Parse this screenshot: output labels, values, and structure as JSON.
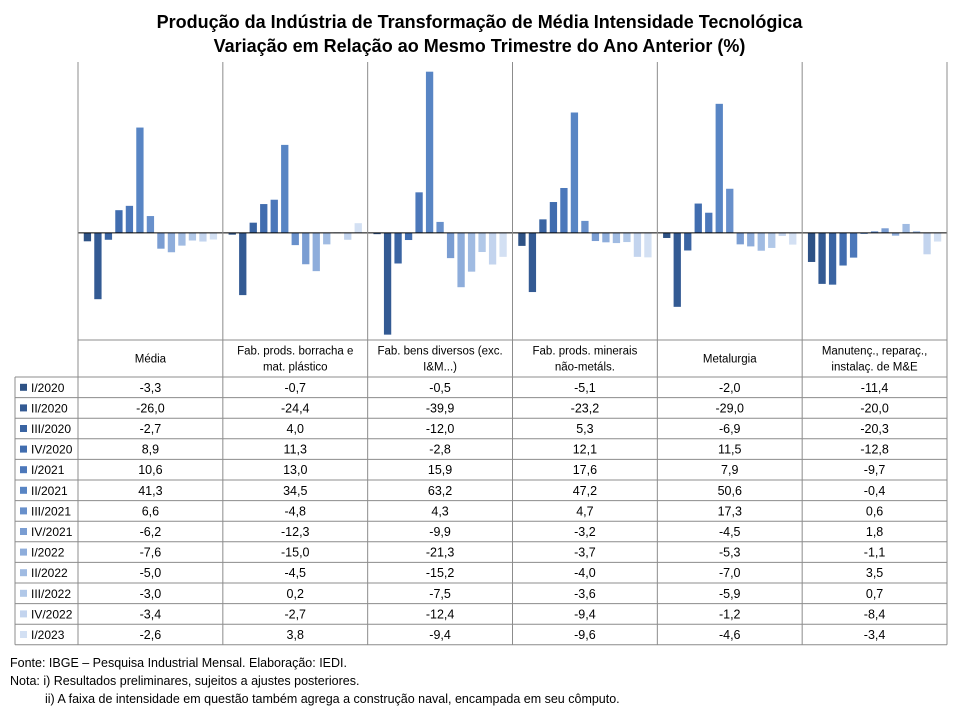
{
  "chart_data": {
    "type": "bar",
    "title": "Produção da Indústria de Transformação de Média Intensidade Tecnológica",
    "subtitle": "Variação em Relação ao Mesmo Trimestre do Ano Anterior (%)",
    "categories": [
      "Média",
      "Fab. prods. borracha e mat. plástico",
      "Fab. bens diversos (exc. I&M...)",
      "Fab. prods. minerais não-metáls.",
      "Metalurgia",
      "Manutenç., reparaç., instalaç. de M&E"
    ],
    "category_lines": [
      [
        "Média"
      ],
      [
        "Fab. prods. borracha e",
        "mat. plástico"
      ],
      [
        "Fab. bens diversos (exc.",
        "I&M...)"
      ],
      [
        "Fab. prods. minerais",
        "não-metáls."
      ],
      [
        "Metalurgia"
      ],
      [
        "Manutenç., reparaç.,",
        "instalaç. de M&E"
      ]
    ],
    "ylim": [
      -42,
      67
    ],
    "grid": false,
    "legend": "left, in data table",
    "series": [
      {
        "name": "I/2020",
        "color": "#2e5285",
        "values": [
          -3.3,
          -0.7,
          -0.5,
          -5.1,
          -2.0,
          -11.4
        ],
        "labels": [
          "-3,3",
          "-0,7",
          "-0,5",
          "-5,1",
          "-2,0",
          "-11,4"
        ]
      },
      {
        "name": "II/2020",
        "color": "#335a93",
        "values": [
          -26.0,
          -24.4,
          -39.9,
          -23.2,
          -29.0,
          -20.0
        ],
        "labels": [
          "-26,0",
          "-24,4",
          "-39,9",
          "-23,2",
          "-29,0",
          "-20,0"
        ]
      },
      {
        "name": "III/2020",
        "color": "#3a64a2",
        "values": [
          -2.7,
          4.0,
          -12.0,
          5.3,
          -6.9,
          -20.3
        ],
        "labels": [
          "-2,7",
          "4,0",
          "-12,0",
          "5,3",
          "-6,9",
          "-20,3"
        ]
      },
      {
        "name": "IV/2020",
        "color": "#416daf",
        "values": [
          8.9,
          11.3,
          -2.8,
          12.1,
          11.5,
          -12.8
        ],
        "labels": [
          "8,9",
          "11,3",
          "-2,8",
          "12,1",
          "11,5",
          "-12,8"
        ]
      },
      {
        "name": "I/2021",
        "color": "#4c78ba",
        "values": [
          10.6,
          13.0,
          15.9,
          17.6,
          7.9,
          -9.7
        ],
        "labels": [
          "10,6",
          "13,0",
          "15,9",
          "17,6",
          "7,9",
          "-9,7"
        ]
      },
      {
        "name": "II/2021",
        "color": "#5885c4",
        "values": [
          41.3,
          34.5,
          63.2,
          47.2,
          50.6,
          -0.4
        ],
        "labels": [
          "41,3",
          "34,5",
          "63,2",
          "47,2",
          "50,6",
          "-0,4"
        ]
      },
      {
        "name": "III/2021",
        "color": "#6890cb",
        "values": [
          6.6,
          -4.8,
          4.3,
          4.7,
          17.3,
          0.6
        ],
        "labels": [
          "6,6",
          "-4,8",
          "4,3",
          "4,7",
          "17,3",
          "0,6"
        ]
      },
      {
        "name": "IV/2021",
        "color": "#7a9dd2",
        "values": [
          -6.2,
          -12.3,
          -9.9,
          -3.2,
          -4.5,
          1.8
        ],
        "labels": [
          "-6,2",
          "-12,3",
          "-9,9",
          "-3,2",
          "-4,5",
          "1,8"
        ]
      },
      {
        "name": "I/2022",
        "color": "#8eaddb",
        "values": [
          -7.6,
          -15.0,
          -21.3,
          -3.7,
          -5.3,
          -1.1
        ],
        "labels": [
          "-7,6",
          "-15,0",
          "-21,3",
          "-3,7",
          "-5,3",
          "-1,1"
        ]
      },
      {
        "name": "II/2022",
        "color": "#a0bbe2",
        "values": [
          -5.0,
          -4.5,
          -15.2,
          -4.0,
          -7.0,
          3.5
        ],
        "labels": [
          "-5,0",
          "-4,5",
          "-15,2",
          "-4,0",
          "-7,0",
          "3,5"
        ]
      },
      {
        "name": "III/2022",
        "color": "#b1c8e8",
        "values": [
          -3.0,
          0.2,
          -7.5,
          -3.6,
          -5.9,
          0.7
        ],
        "labels": [
          "-3,0",
          "0,2",
          "-7,5",
          "-3,6",
          "-5,9",
          "0,7"
        ]
      },
      {
        "name": "IV/2022",
        "color": "#c3d4ee",
        "values": [
          -3.4,
          -2.7,
          -12.4,
          -9.4,
          -1.2,
          -8.4
        ],
        "labels": [
          "-3,4",
          "-2,7",
          "-12,4",
          "-9,4",
          "-1,2",
          "-8,4"
        ]
      },
      {
        "name": "I/2023",
        "color": "#d3e0f3",
        "values": [
          -2.6,
          3.8,
          -9.4,
          -9.6,
          -4.6,
          -3.4
        ],
        "labels": [
          "-2,6",
          "3,8",
          "-9,4",
          "-9,6",
          "-4,6",
          "-3,4"
        ]
      }
    ]
  },
  "footnotes": {
    "source": "Fonte: IBGE – Pesquisa Industrial Mensal. Elaboração: IEDI.",
    "note1": "Nota: i) Resultados preliminares, sujeitos a ajustes posteriores.",
    "note2": "ii) A faixa de intensidade em questão também agrega a construção naval, encampada em seu cômputo."
  }
}
